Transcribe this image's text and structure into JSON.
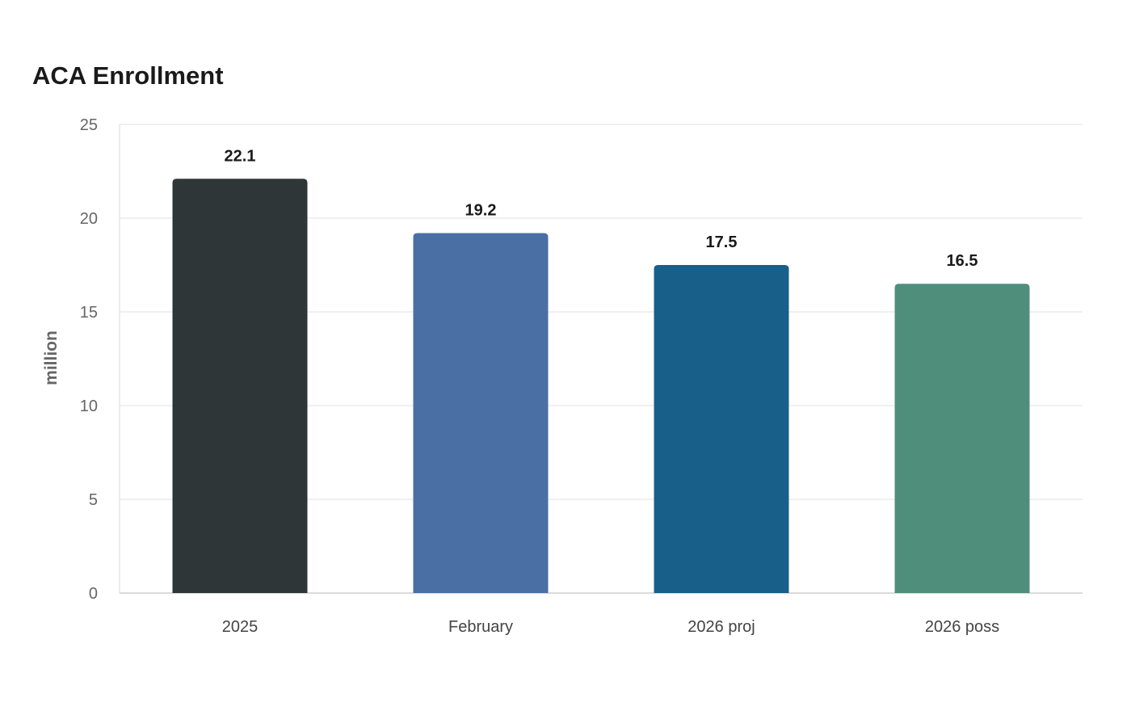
{
  "chart_data": {
    "type": "bar",
    "title": "ACA Enrollment",
    "xlabel": "",
    "ylabel": "million",
    "categories": [
      "2025",
      "February",
      "2026 proj",
      "2026 poss"
    ],
    "values": [
      22.1,
      19.2,
      17.5,
      16.5
    ],
    "value_labels": [
      "22.1",
      "19.2",
      "17.5",
      "16.5"
    ],
    "ylim": [
      0,
      25
    ],
    "yticks": [
      0,
      5,
      10,
      15,
      20,
      25
    ],
    "ytick_labels": [
      "0",
      "5",
      "10",
      "15",
      "20",
      "25"
    ],
    "grid": true,
    "legend": "none",
    "colors": [
      "#2e3638",
      "#4a6fa5",
      "#186089",
      "#4f8e7b"
    ]
  }
}
